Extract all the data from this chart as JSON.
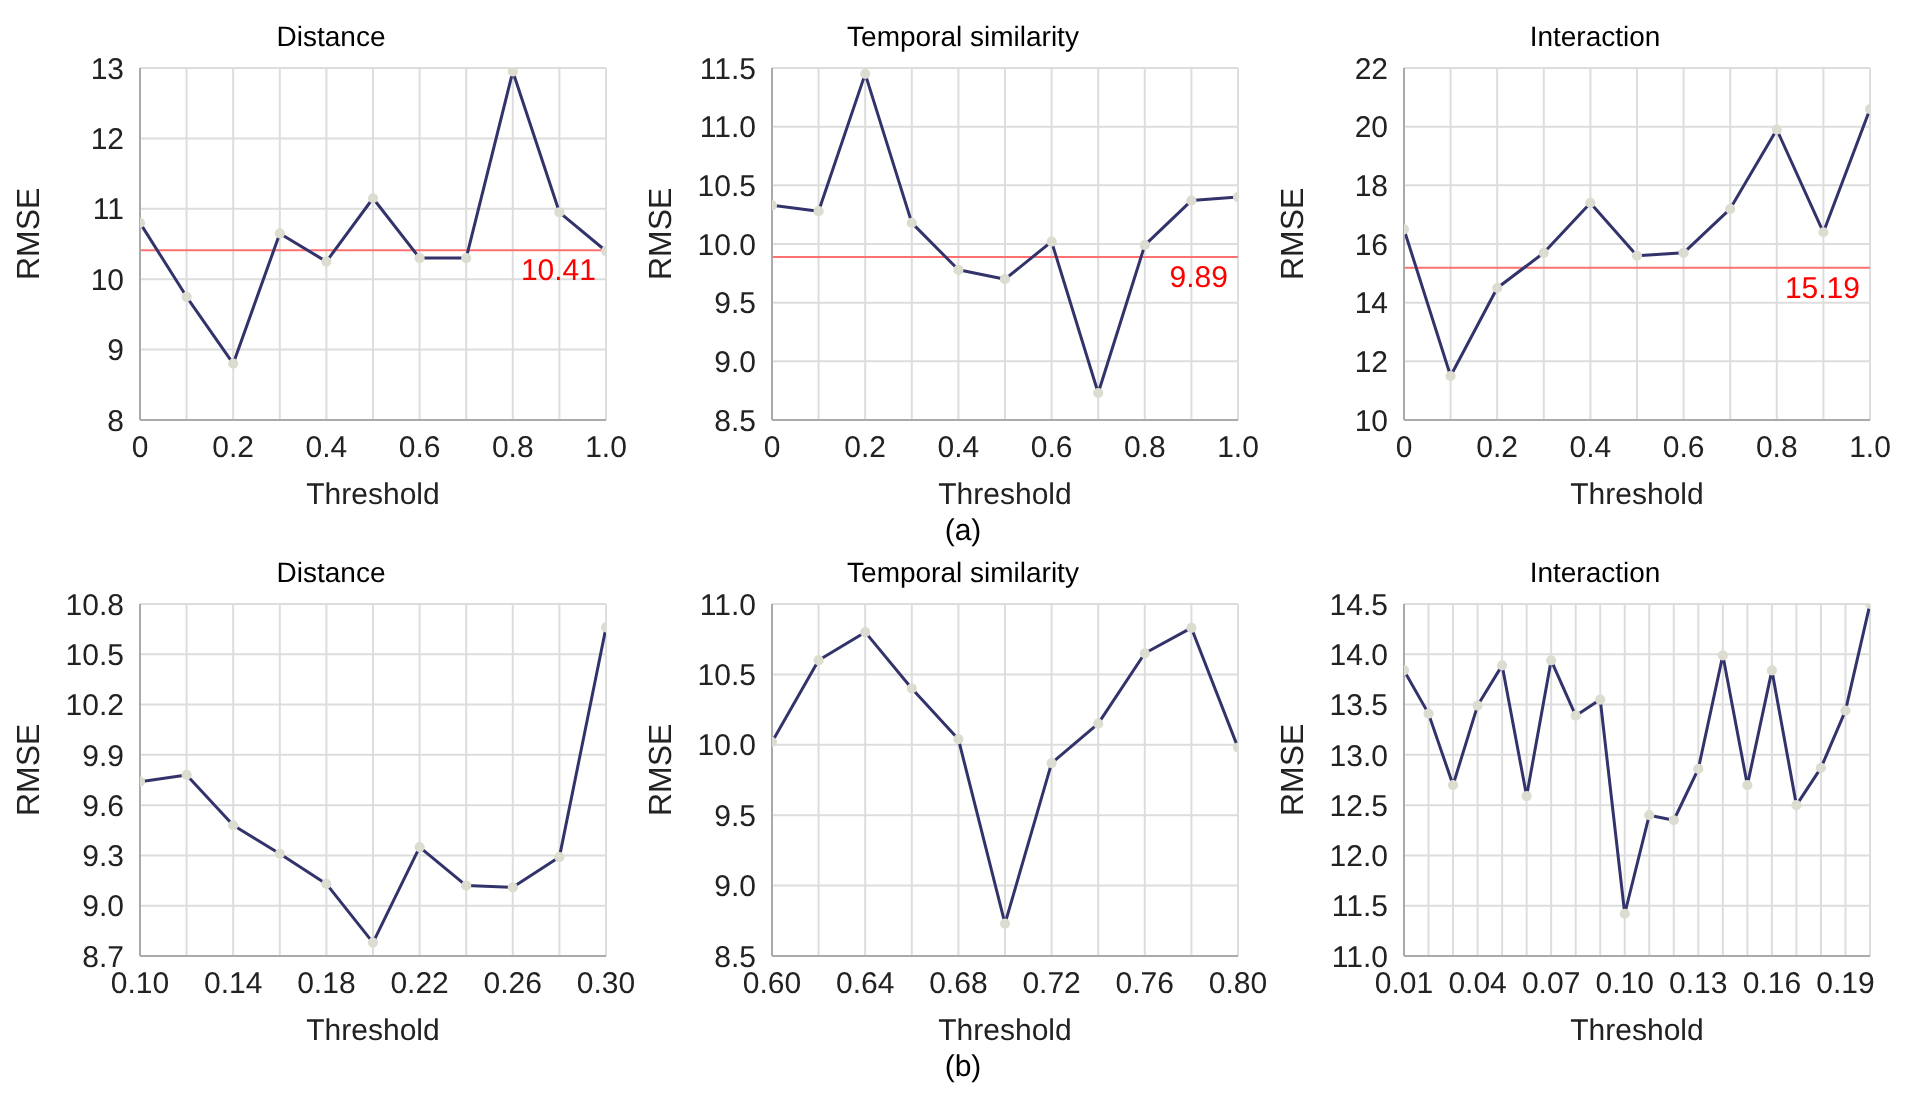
{
  "chart_data": [
    {
      "type": "line",
      "title": "Distance",
      "xlabel": "Threshold",
      "ylabel": "RMSE",
      "x": [
        0,
        0.1,
        0.2,
        0.3,
        0.4,
        0.5,
        0.6,
        0.7,
        0.8,
        0.9,
        1.0
      ],
      "series": [
        {
          "color": "#33336b",
          "values": [
            10.8,
            9.75,
            8.8,
            10.65,
            10.25,
            11.15,
            10.3,
            10.3,
            12.95,
            10.95,
            10.4
          ]
        }
      ],
      "xlim": [
        0,
        1
      ],
      "xticks": [
        0,
        {
          "value": 0.1,
          "label": null
        },
        0.2,
        {
          "value": 0.3,
          "label": null
        },
        0.4,
        {
          "value": 0.5,
          "label": null
        },
        0.6,
        {
          "value": 0.7,
          "label": null
        },
        0.8,
        {
          "value": 0.9,
          "label": null
        },
        {
          "value": 1,
          "label": "1.0"
        }
      ],
      "ylim": [
        8,
        13
      ],
      "yticks": [
        8,
        9,
        10,
        11,
        12,
        13
      ],
      "ref_lines": [
        {
          "axis": "y",
          "value": 10.41,
          "label": "10.41",
          "color": "#ff7070"
        }
      ],
      "grid": true,
      "marker": "circle",
      "line_style": "solid"
    },
    {
      "type": "line",
      "title": "Temporal similarity",
      "xlabel": "Threshold",
      "ylabel": "RMSE",
      "x": [
        0,
        0.1,
        0.2,
        0.3,
        0.4,
        0.5,
        0.6,
        0.7,
        0.8,
        0.9,
        1.0
      ],
      "series": [
        {
          "color": "#33336b",
          "values": [
            10.33,
            10.28,
            11.45,
            10.18,
            9.78,
            9.7,
            10.02,
            8.73,
            9.99,
            10.37,
            10.4
          ]
        }
      ],
      "xlim": [
        0,
        1
      ],
      "xticks": [
        0,
        {
          "value": 0.1,
          "label": null
        },
        0.2,
        {
          "value": 0.3,
          "label": null
        },
        0.4,
        {
          "value": 0.5,
          "label": null
        },
        0.6,
        {
          "value": 0.7,
          "label": null
        },
        0.8,
        {
          "value": 0.9,
          "label": null
        },
        {
          "value": 1,
          "label": "1.0"
        }
      ],
      "ylim": [
        8.5,
        11.5
      ],
      "yticks": [
        8.5,
        {
          "value": 9,
          "label": "9.0"
        },
        9.5,
        {
          "value": 10,
          "label": "10.0"
        },
        10.5,
        {
          "value": 11,
          "label": "11.0"
        },
        11.5
      ],
      "ref_lines": [
        {
          "axis": "y",
          "value": 9.89,
          "label": "9.89",
          "color": "#ff7070"
        }
      ],
      "grid": true,
      "marker": "circle",
      "line_style": "solid",
      "annotations": [
        "(a)"
      ]
    },
    {
      "type": "line",
      "title": "Interaction",
      "xlabel": "Threshold",
      "ylabel": "RMSE",
      "x": [
        0,
        0.1,
        0.2,
        0.3,
        0.4,
        0.5,
        0.6,
        0.7,
        0.8,
        0.9,
        1.0
      ],
      "series": [
        {
          "color": "#33336b",
          "values": [
            16.5,
            11.5,
            14.5,
            15.7,
            17.4,
            15.6,
            15.7,
            17.2,
            19.9,
            16.4,
            20.6
          ]
        }
      ],
      "xlim": [
        0,
        1
      ],
      "xticks": [
        0,
        {
          "value": 0.1,
          "label": null
        },
        0.2,
        {
          "value": 0.3,
          "label": null
        },
        0.4,
        {
          "value": 0.5,
          "label": null
        },
        0.6,
        {
          "value": 0.7,
          "label": null
        },
        0.8,
        {
          "value": 0.9,
          "label": null
        },
        {
          "value": 1,
          "label": "1.0"
        }
      ],
      "ylim": [
        10,
        22
      ],
      "yticks": [
        10,
        12,
        14,
        16,
        18,
        20,
        22
      ],
      "ref_lines": [
        {
          "axis": "y",
          "value": 15.19,
          "label": "15.19",
          "color": "#ff7070"
        }
      ],
      "grid": true,
      "marker": "circle",
      "line_style": "solid"
    },
    {
      "type": "line",
      "title": "Distance",
      "xlabel": "Threshold",
      "ylabel": "RMSE",
      "x": [
        0.1,
        0.12,
        0.14,
        0.16,
        0.18,
        0.2,
        0.22,
        0.24,
        0.26,
        0.28,
        0.3
      ],
      "series": [
        {
          "color": "#33336b",
          "values": [
            9.74,
            9.78,
            9.48,
            9.31,
            9.13,
            8.78,
            9.35,
            9.12,
            9.11,
            9.29,
            10.66
          ]
        }
      ],
      "xlim": [
        0.1,
        0.3
      ],
      "xticks": [
        {
          "value": 0.1,
          "label": "0.10"
        },
        {
          "value": 0.12,
          "label": null
        },
        0.14,
        {
          "value": 0.16,
          "label": null
        },
        0.18,
        {
          "value": 0.2,
          "label": null
        },
        0.22,
        {
          "value": 0.24,
          "label": null
        },
        0.26,
        {
          "value": 0.28,
          "label": null
        },
        {
          "value": 0.3,
          "label": "0.30"
        }
      ],
      "ylim": [
        8.7,
        10.8
      ],
      "yticks": [
        8.7,
        {
          "value": 9,
          "label": "9.0"
        },
        9.3,
        9.6,
        9.9,
        10.2,
        10.5,
        10.8
      ],
      "grid": true,
      "marker": "circle",
      "line_style": "solid"
    },
    {
      "type": "line",
      "title": "Temporal similarity",
      "xlabel": "Threshold",
      "ylabel": "RMSE",
      "x": [
        0.6,
        0.62,
        0.64,
        0.66,
        0.68,
        0.7,
        0.72,
        0.74,
        0.76,
        0.78,
        0.8
      ],
      "series": [
        {
          "color": "#33336b",
          "values": [
            10.02,
            10.6,
            10.8,
            10.4,
            10.04,
            8.73,
            9.87,
            10.15,
            10.65,
            10.83,
            9.98
          ]
        }
      ],
      "xlim": [
        0.6,
        0.8
      ],
      "xticks": [
        {
          "value": 0.6,
          "label": "0.60"
        },
        {
          "value": 0.62,
          "label": null
        },
        0.64,
        {
          "value": 0.66,
          "label": null
        },
        0.68,
        {
          "value": 0.7,
          "label": null
        },
        0.72,
        {
          "value": 0.74,
          "label": null
        },
        0.76,
        {
          "value": 0.78,
          "label": null
        },
        {
          "value": 0.8,
          "label": "0.80"
        }
      ],
      "ylim": [
        8.5,
        11
      ],
      "yticks": [
        8.5,
        {
          "value": 9,
          "label": "9.0"
        },
        9.5,
        {
          "value": 10,
          "label": "10.0"
        },
        10.5,
        {
          "value": 11,
          "label": "11.0"
        }
      ],
      "grid": true,
      "marker": "circle",
      "line_style": "solid",
      "annotations": [
        "(b)"
      ]
    },
    {
      "type": "line",
      "title": "Interaction",
      "xlabel": "Threshold",
      "ylabel": "RMSE",
      "x": [
        0.01,
        0.02,
        0.03,
        0.04,
        0.05,
        0.06,
        0.07,
        0.08,
        0.09,
        0.1,
        0.11,
        0.12,
        0.13,
        0.14,
        0.15,
        0.16,
        0.17,
        0.18,
        0.19,
        0.2
      ],
      "series": [
        {
          "color": "#33336b",
          "values": [
            13.84,
            13.41,
            12.7,
            13.49,
            13.89,
            12.59,
            13.94,
            13.39,
            13.55,
            11.42,
            12.4,
            12.35,
            12.86,
            13.99,
            12.7,
            13.84,
            12.5,
            12.87,
            13.44,
            14.5
          ]
        }
      ],
      "xlim": [
        0.01,
        0.2
      ],
      "xticks": [
        0.01,
        {
          "value": 0.02,
          "label": null
        },
        {
          "value": 0.03,
          "label": null
        },
        0.04,
        {
          "value": 0.05,
          "label": null
        },
        {
          "value": 0.06,
          "label": null
        },
        0.07,
        {
          "value": 0.08,
          "label": null
        },
        {
          "value": 0.09,
          "label": null
        },
        {
          "value": 0.1,
          "label": "0.10"
        },
        {
          "value": 0.11,
          "label": null
        },
        {
          "value": 0.12,
          "label": null
        },
        0.13,
        {
          "value": 0.14,
          "label": null
        },
        {
          "value": 0.15,
          "label": null
        },
        0.16,
        {
          "value": 0.17,
          "label": null
        },
        {
          "value": 0.18,
          "label": null
        },
        0.19,
        {
          "value": 0.2,
          "label": null
        }
      ],
      "ylim": [
        11,
        14.5
      ],
      "yticks": [
        {
          "value": 11,
          "label": "11.0"
        },
        11.5,
        {
          "value": 12,
          "label": "12.0"
        },
        12.5,
        {
          "value": 13,
          "label": "13.0"
        },
        13.5,
        {
          "value": 14,
          "label": "14.0"
        },
        14.5
      ],
      "grid": true,
      "marker": "circle",
      "line_style": "solid"
    }
  ]
}
